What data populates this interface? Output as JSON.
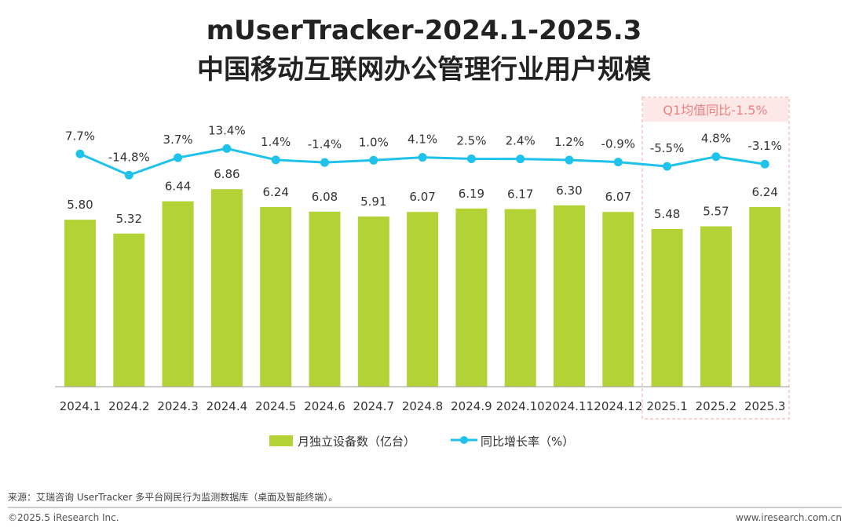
{
  "chart_data": {
    "type": "bar+line",
    "title": "mUserTracker-2024.1-2025.3",
    "subtitle": "中国移动互联网办公管理行业用户规模",
    "categories": [
      "2024.1",
      "2024.2",
      "2024.3",
      "2024.4",
      "2024.5",
      "2024.6",
      "2024.7",
      "2024.8",
      "2024.9",
      "2024.10",
      "2024.11",
      "2024.12",
      "2025.1",
      "2025.2",
      "2025.3"
    ],
    "series": [
      {
        "name": "月独立设备数（亿台）",
        "type": "bar",
        "color": "#b2d235",
        "values": [
          5.8,
          5.32,
          6.44,
          6.86,
          6.24,
          6.08,
          5.91,
          6.07,
          6.19,
          6.17,
          6.3,
          6.07,
          5.48,
          5.57,
          6.24
        ],
        "labels": [
          "5.80",
          "5.32",
          "6.44",
          "6.86",
          "6.24",
          "6.08",
          "5.91",
          "6.07",
          "6.19",
          "6.17",
          "6.30",
          "6.07",
          "5.48",
          "5.57",
          "6.24"
        ]
      },
      {
        "name": "同比增长率（%）",
        "type": "line",
        "color": "#1fc2ea",
        "values": [
          7.7,
          -14.8,
          3.7,
          13.4,
          1.4,
          -1.4,
          1.0,
          4.1,
          2.5,
          2.4,
          1.2,
          -0.9,
          -5.5,
          4.8,
          -3.1
        ],
        "labels": [
          "7.7%",
          "-14.8%",
          "3.7%",
          "13.4%",
          "1.4%",
          "-1.4%",
          "1.0%",
          "4.1%",
          "2.5%",
          "2.4%",
          "1.2%",
          "-0.9%",
          "-5.5%",
          "4.8%",
          "-3.1%"
        ]
      }
    ],
    "annotation": {
      "text": "Q1均值同比-1.5%",
      "range": [
        "2025.1",
        "2025.3"
      ],
      "color": "#f08080"
    },
    "legend_position": "bottom",
    "grid": false
  },
  "footer": {
    "source": "来源：艾瑞咨询 UserTracker 多平台网民行为监测数据库（桌面及智能终端）。",
    "copyright": "©2025.5 iResearch Inc.",
    "website": "www.iresearch.com.cn"
  }
}
